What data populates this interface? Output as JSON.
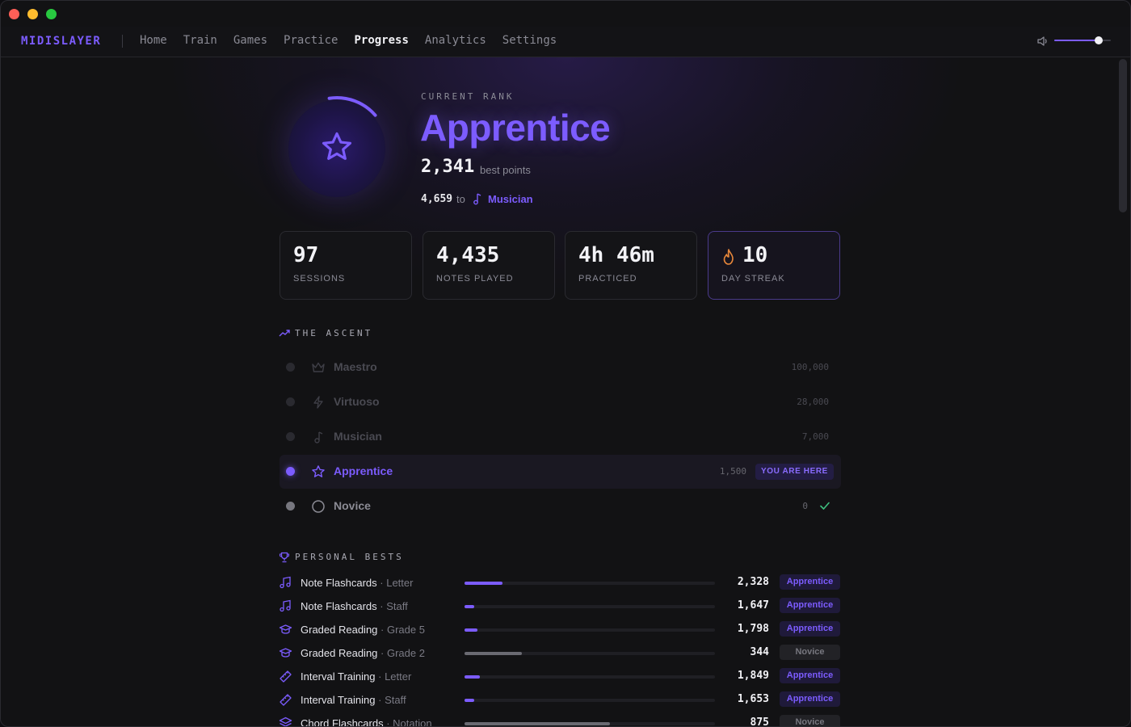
{
  "nav": {
    "brand": "MIDISLAYER",
    "links": [
      "Home",
      "Train",
      "Games",
      "Practice",
      "Progress",
      "Analytics",
      "Settings"
    ],
    "active": "Progress",
    "volume_level": 0.78
  },
  "rank": {
    "label": "CURRENT RANK",
    "name": "Apprentice",
    "best_points": "2,341",
    "best_points_label": "best points",
    "points_to_next": "4,659",
    "to_word": "to",
    "next_rank": "Musician",
    "progress_fraction": 0.16
  },
  "stats": [
    {
      "value": "97",
      "label": "SESSIONS"
    },
    {
      "value": "4,435",
      "label": "NOTES PLAYED"
    },
    {
      "value": "4h 46m",
      "label": "PRACTICED"
    },
    {
      "value": "10",
      "label": "DAY STREAK",
      "icon": "flame-icon"
    }
  ],
  "ascent": {
    "title": "THE ASCENT",
    "ranks": [
      {
        "name": "Maestro",
        "points": "100,000",
        "icon": "crown-icon",
        "state": "locked"
      },
      {
        "name": "Virtuoso",
        "points": "28,000",
        "icon": "bolt-icon",
        "state": "locked"
      },
      {
        "name": "Musician",
        "points": "7,000",
        "icon": "music-note-icon",
        "state": "locked"
      },
      {
        "name": "Apprentice",
        "points": "1,500",
        "icon": "star-icon",
        "state": "current",
        "badge": "YOU ARE HERE"
      },
      {
        "name": "Novice",
        "points": "0",
        "icon": "circle-icon",
        "state": "done"
      }
    ]
  },
  "personal_bests": {
    "title": "PERSONAL BESTS",
    "rows": [
      {
        "game": "Note Flashcards",
        "mode": "Letter",
        "score": "2,328",
        "rank": "Apprentice",
        "icon": "music-notes-icon",
        "fill": 0.15
      },
      {
        "game": "Note Flashcards",
        "mode": "Staff",
        "score": "1,647",
        "rank": "Apprentice",
        "icon": "music-notes-icon",
        "fill": 0.04
      },
      {
        "game": "Graded Reading",
        "mode": "Grade 5",
        "score": "1,798",
        "rank": "Apprentice",
        "icon": "graduation-cap-icon",
        "fill": 0.05
      },
      {
        "game": "Graded Reading",
        "mode": "Grade 2",
        "score": "344",
        "rank": "Novice",
        "icon": "graduation-cap-icon",
        "fill": 0.23
      },
      {
        "game": "Interval Training",
        "mode": "Letter",
        "score": "1,849",
        "rank": "Apprentice",
        "icon": "ruler-icon",
        "fill": 0.06
      },
      {
        "game": "Interval Training",
        "mode": "Staff",
        "score": "1,653",
        "rank": "Apprentice",
        "icon": "ruler-icon",
        "fill": 0.04
      },
      {
        "game": "Chord Flashcards",
        "mode": "Notation",
        "score": "875",
        "rank": "Novice",
        "icon": "layers-icon",
        "fill": 0.58
      }
    ]
  }
}
